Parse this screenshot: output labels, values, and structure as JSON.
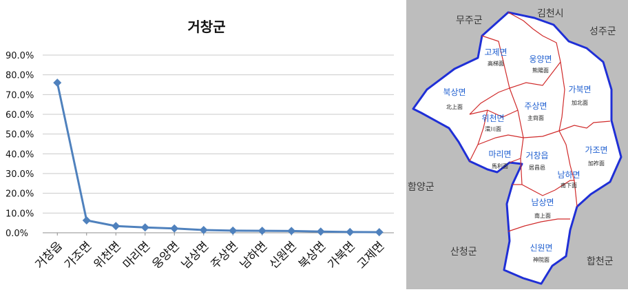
{
  "chart_data": {
    "type": "line",
    "title": "거창군",
    "categories": [
      "거창읍",
      "가조면",
      "위천면",
      "마리면",
      "웅양면",
      "남상면",
      "주상면",
      "남하면",
      "신원면",
      "북상면",
      "가북면",
      "고제면"
    ],
    "series": [
      {
        "values": [
          76.0,
          6.3,
          3.4,
          2.7,
          2.2,
          1.4,
          1.1,
          1.0,
          0.9,
          0.6,
          0.4,
          0.3
        ]
      }
    ],
    "y_ticks": [
      "90.0%",
      "80.0%",
      "70.0%",
      "60.0%",
      "50.0%",
      "40.0%",
      "30.0%",
      "20.0%",
      "10.0%",
      "0.0%"
    ],
    "ylim": [
      0,
      90
    ],
    "xlabel": "",
    "ylabel": "",
    "grid": true,
    "legend": "none",
    "line_color": "#4f81bd",
    "marker": "diamond"
  },
  "map": {
    "neighbors": [
      {
        "id": "muju",
        "label": "무주군"
      },
      {
        "id": "gimcheon",
        "label": "김천시"
      },
      {
        "id": "seongju",
        "label": "성주군"
      },
      {
        "id": "hamyang",
        "label": "함양군"
      },
      {
        "id": "sancheong",
        "label": "산청군"
      },
      {
        "id": "hapcheon",
        "label": "합천군"
      }
    ],
    "districts": [
      {
        "id": "goje",
        "name": "고제면",
        "hanja": "高梯面"
      },
      {
        "id": "ungyang",
        "name": "웅양면",
        "hanja": "熊陽面"
      },
      {
        "id": "buksang",
        "name": "북상면",
        "hanja": "北上面"
      },
      {
        "id": "gabuk",
        "name": "가북면",
        "hanja": "加北面"
      },
      {
        "id": "jusang",
        "name": "주상면",
        "hanja": "主尙面"
      },
      {
        "id": "wicheon",
        "name": "위천면",
        "hanja": "渭川面"
      },
      {
        "id": "gajo",
        "name": "가조면",
        "hanja": "加祚面"
      },
      {
        "id": "mari",
        "name": "마리면",
        "hanja": "馬利面"
      },
      {
        "id": "geochang",
        "name": "거창읍",
        "hanja": "居昌邑"
      },
      {
        "id": "namha",
        "name": "남하면",
        "hanja": "南下面"
      },
      {
        "id": "namsang",
        "name": "남상면",
        "hanja": "南上面"
      },
      {
        "id": "sinwon",
        "name": "신원면",
        "hanja": "神院面"
      }
    ],
    "colors": {
      "background": "#bdbdbd",
      "land": "#ffffff",
      "county_border": "#1f2fd6",
      "district_border": "#d02a2a",
      "district_name": "#1f5fd0",
      "neighbor_text": "#3a3a3a"
    }
  }
}
